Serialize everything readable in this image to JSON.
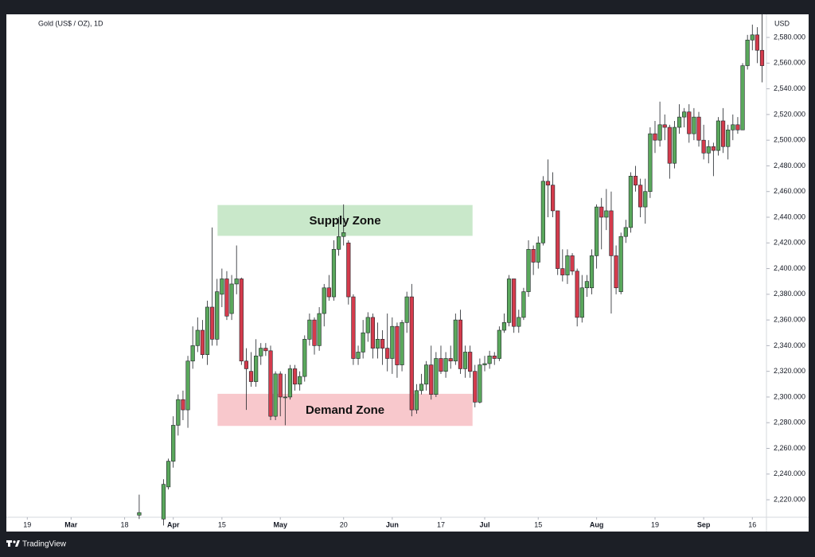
{
  "chart_data": {
    "type": "candlestick",
    "title": "Gold (US$ / OZ), 1D",
    "currency": "USD",
    "brand": "TradingView",
    "up_color": "#5aa85c",
    "down_color": "#d43b4c",
    "x": [
      0,
      5,
      6,
      7,
      8,
      9,
      10,
      11,
      12,
      13,
      14,
      15,
      16,
      17,
      18,
      19,
      20,
      21,
      22,
      23,
      24,
      25,
      26,
      27,
      28,
      29,
      30,
      31,
      32,
      33,
      34,
      35,
      36,
      37,
      38,
      39,
      40,
      41,
      42,
      43,
      44,
      45,
      46,
      47,
      48,
      49,
      50,
      51,
      52,
      53,
      54,
      55,
      56,
      57,
      58,
      59,
      60,
      61,
      62,
      63,
      64,
      65,
      66,
      67,
      68,
      69,
      70,
      71,
      72,
      73,
      74,
      75,
      76,
      77,
      78,
      79,
      80,
      81,
      82,
      83,
      84,
      85,
      86,
      87,
      88,
      89,
      90,
      91,
      92,
      93,
      94,
      95,
      96,
      97,
      98,
      99,
      100,
      101,
      102,
      103,
      104,
      105,
      106,
      107,
      108,
      109,
      110,
      111,
      112,
      113,
      114,
      115,
      116,
      117,
      118,
      119,
      120,
      121,
      122,
      123,
      124,
      125,
      126,
      127,
      128
    ],
    "open": [
      2208,
      2205,
      2230,
      2250,
      2278,
      2298,
      2290,
      2328,
      2340,
      2352,
      2333,
      2370,
      2345,
      2380,
      2392,
      2365,
      2388,
      2392,
      2328,
      2320,
      2312,
      2332,
      2338,
      2336,
      2285,
      2318,
      2300,
      2300,
      2322,
      2310,
      2316,
      2345,
      2360,
      2340,
      2365,
      2385,
      2378,
      2415,
      2425,
      2420,
      2378,
      2330,
      2335,
      2350,
      2362,
      2338,
      2345,
      2338,
      2330,
      2355,
      2325,
      2358,
      2378,
      2290,
      2305,
      2310,
      2325,
      2302,
      2330,
      2320,
      2330,
      2328,
      2360,
      2322,
      2335,
      2320,
      2296,
      2325,
      2326,
      2332,
      2330,
      2352,
      2358,
      2392,
      2355,
      2362,
      2382,
      2415,
      2405,
      2420,
      2468,
      2465,
      2445,
      2400,
      2395,
      2410,
      2398,
      2362,
      2385,
      2385,
      2410,
      2448,
      2440,
      2445,
      2410,
      2382,
      2425,
      2432,
      2472,
      2465,
      2448,
      2460,
      2505,
      2500,
      2512,
      2510,
      2482,
      2510,
      2518,
      2522,
      2505,
      2518,
      2500,
      2490,
      2495,
      2492,
      2515,
      2495,
      2508,
      2512,
      2508,
      2558,
      2578,
      2582,
      2570
    ],
    "high": [
      2224,
      2236,
      2252,
      2285,
      2302,
      2305,
      2332,
      2355,
      2362,
      2360,
      2375,
      2432,
      2392,
      2400,
      2398,
      2395,
      2418,
      2393,
      2338,
      2335,
      2345,
      2342,
      2342,
      2340,
      2320,
      2320,
      2318,
      2325,
      2325,
      2320,
      2348,
      2365,
      2362,
      2370,
      2388,
      2395,
      2422,
      2440,
      2450,
      2422,
      2380,
      2340,
      2360,
      2366,
      2365,
      2358,
      2352,
      2365,
      2362,
      2358,
      2360,
      2382,
      2388,
      2310,
      2318,
      2328,
      2340,
      2335,
      2340,
      2335,
      2340,
      2365,
      2368,
      2340,
      2340,
      2325,
      2330,
      2332,
      2336,
      2335,
      2355,
      2365,
      2395,
      2392,
      2368,
      2385,
      2422,
      2418,
      2425,
      2472,
      2485,
      2475,
      2445,
      2415,
      2415,
      2412,
      2400,
      2395,
      2395,
      2415,
      2450,
      2455,
      2462,
      2460,
      2418,
      2428,
      2438,
      2475,
      2480,
      2470,
      2470,
      2510,
      2515,
      2530,
      2520,
      2512,
      2515,
      2528,
      2525,
      2528,
      2525,
      2522,
      2512,
      2500,
      2498,
      2518,
      2525,
      2512,
      2520,
      2518,
      2560,
      2582,
      2590,
      2588,
      2600
    ],
    "low": [
      2205,
      2200,
      2228,
      2245,
      2270,
      2282,
      2276,
      2322,
      2335,
      2330,
      2325,
      2340,
      2340,
      2370,
      2360,
      2360,
      2380,
      2325,
      2290,
      2308,
      2308,
      2325,
      2332,
      2282,
      2282,
      2285,
      2278,
      2298,
      2305,
      2305,
      2312,
      2340,
      2333,
      2336,
      2355,
      2375,
      2375,
      2410,
      2418,
      2372,
      2325,
      2325,
      2330,
      2343,
      2330,
      2330,
      2325,
      2320,
      2318,
      2315,
      2320,
      2350,
      2285,
      2287,
      2302,
      2305,
      2298,
      2300,
      2318,
      2315,
      2322,
      2325,
      2318,
      2315,
      2315,
      2292,
      2295,
      2320,
      2322,
      2325,
      2328,
      2350,
      2355,
      2350,
      2350,
      2360,
      2378,
      2395,
      2400,
      2418,
      2440,
      2440,
      2395,
      2390,
      2388,
      2395,
      2355,
      2358,
      2378,
      2380,
      2400,
      2415,
      2430,
      2365,
      2380,
      2380,
      2420,
      2428,
      2460,
      2440,
      2435,
      2455,
      2490,
      2495,
      2500,
      2470,
      2478,
      2505,
      2510,
      2498,
      2500,
      2495,
      2485,
      2482,
      2472,
      2488,
      2490,
      2485,
      2500,
      2505,
      2508,
      2555,
      2570,
      2560,
      2545
    ],
    "close": [
      2210,
      2232,
      2250,
      2278,
      2298,
      2290,
      2328,
      2340,
      2352,
      2333,
      2370,
      2345,
      2382,
      2392,
      2363,
      2388,
      2392,
      2328,
      2322,
      2312,
      2332,
      2338,
      2336,
      2285,
      2318,
      2300,
      2300,
      2322,
      2310,
      2316,
      2345,
      2360,
      2340,
      2365,
      2385,
      2378,
      2415,
      2425,
      2428,
      2378,
      2330,
      2335,
      2350,
      2362,
      2338,
      2345,
      2338,
      2330,
      2355,
      2325,
      2358,
      2378,
      2290,
      2305,
      2310,
      2325,
      2302,
      2330,
      2320,
      2330,
      2328,
      2360,
      2322,
      2335,
      2320,
      2296,
      2325,
      2326,
      2332,
      2330,
      2352,
      2358,
      2392,
      2355,
      2362,
      2382,
      2415,
      2405,
      2420,
      2468,
      2465,
      2445,
      2400,
      2395,
      2410,
      2398,
      2362,
      2385,
      2390,
      2410,
      2448,
      2440,
      2445,
      2410,
      2385,
      2425,
      2432,
      2472,
      2465,
      2448,
      2460,
      2505,
      2500,
      2512,
      2510,
      2482,
      2510,
      2518,
      2522,
      2505,
      2518,
      2500,
      2490,
      2495,
      2492,
      2515,
      2495,
      2508,
      2512,
      2508,
      2558,
      2578,
      2582,
      2570,
      2558
    ],
    "xlim": [
      -27.3,
      128.9
    ],
    "xticks": [
      {
        "value": -23,
        "label": "19"
      },
      {
        "value": -14,
        "label": "Mar"
      },
      {
        "value": -3,
        "label": "18"
      },
      {
        "value": 7,
        "label": "Apr"
      },
      {
        "value": 17,
        "label": "15"
      },
      {
        "value": 29,
        "label": "May"
      },
      {
        "value": 42,
        "label": "20"
      },
      {
        "value": 52,
        "label": "Jun"
      },
      {
        "value": 62,
        "label": "17"
      },
      {
        "value": 71,
        "label": "Jul"
      },
      {
        "value": 82,
        "label": "15"
      },
      {
        "value": 94,
        "label": "Aug"
      },
      {
        "value": 106,
        "label": "19"
      },
      {
        "value": 116,
        "label": "Sep"
      },
      {
        "value": 126,
        "label": "16"
      }
    ],
    "ylim": [
      2206.4,
      2598
    ],
    "yticks": [
      {
        "value": 2220,
        "label": "2,220.000"
      },
      {
        "value": 2240,
        "label": "2,240.000"
      },
      {
        "value": 2260,
        "label": "2,260.000"
      },
      {
        "value": 2280,
        "label": "2,280.000"
      },
      {
        "value": 2300,
        "label": "2,300.000"
      },
      {
        "value": 2320,
        "label": "2,320.000"
      },
      {
        "value": 2340,
        "label": "2,340.000"
      },
      {
        "value": 2360,
        "label": "2,360.000"
      },
      {
        "value": 2380,
        "label": "2,380.000"
      },
      {
        "value": 2400,
        "label": "2,400.000"
      },
      {
        "value": 2420,
        "label": "2,420.000"
      },
      {
        "value": 2440,
        "label": "2,440.000"
      },
      {
        "value": 2460,
        "label": "2,460.000"
      },
      {
        "value": 2480,
        "label": "2,480.000"
      },
      {
        "value": 2500,
        "label": "2,500.000"
      },
      {
        "value": 2520,
        "label": "2,520.000"
      },
      {
        "value": 2540,
        "label": "2,540.000"
      },
      {
        "value": 2560,
        "label": "2,560.000"
      },
      {
        "value": 2580,
        "label": "2,580.000"
      }
    ],
    "zones": [
      {
        "label": "Supply Zone",
        "x": [
          16.1,
          68.5
        ],
        "y": [
          2449.5,
          2425.5
        ],
        "color": "#c3e6c4"
      },
      {
        "label": "Demand Zone",
        "x": [
          16.1,
          68.5
        ],
        "y": [
          2302.5,
          2277.5
        ],
        "color": "#f7c2c7"
      }
    ]
  }
}
